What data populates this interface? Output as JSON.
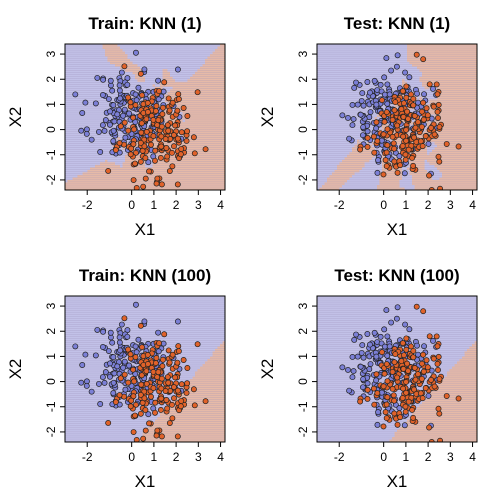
{
  "colors": {
    "class_blue": "#7b7fd6",
    "class_orange": "#e0622a",
    "region_blue": "#c9c9ef",
    "region_orange": "#f2c1a6",
    "grid_blue": "#6f73d4",
    "grid_orange": "#e07a45"
  },
  "chart_data": [
    {
      "type": "scatter",
      "title": "Train: KNN (1)",
      "xlabel": "X1",
      "ylabel": "X2",
      "xlim": [
        -3.0,
        4.2
      ],
      "ylim": [
        -2.4,
        3.4
      ],
      "xticks": [
        -2,
        0,
        1,
        2,
        3,
        4
      ],
      "xtick_labels": [
        "-2",
        "0",
        "1",
        "2",
        "3",
        "4"
      ],
      "yticks": [
        -2,
        -1,
        0,
        1,
        2,
        3
      ],
      "ytick_labels": [
        "-2",
        "-1",
        "0",
        "1",
        "2",
        "3"
      ],
      "decision_boundary": "jagged (k = 1)",
      "background_grid": true
    },
    {
      "type": "scatter",
      "title": "Test: KNN (1)",
      "xlabel": "X1",
      "ylabel": "X2",
      "xlim": [
        -3.0,
        4.2
      ],
      "ylim": [
        -2.4,
        3.4
      ],
      "xticks": [
        -2,
        0,
        1,
        2,
        3,
        4
      ],
      "xtick_labels": [
        "-2",
        "0",
        "1",
        "2",
        "3",
        "4"
      ],
      "yticks": [
        -2,
        -1,
        0,
        1,
        2,
        3
      ],
      "ytick_labels": [
        "-2",
        "-1",
        "0",
        "1",
        "2",
        "3"
      ],
      "decision_boundary": "jagged (k = 1)",
      "background_grid": true
    },
    {
      "type": "scatter",
      "title": "Train: KNN (100)",
      "xlabel": "X1",
      "ylabel": "X2",
      "xlim": [
        -3.0,
        4.2
      ],
      "ylim": [
        -2.4,
        3.4
      ],
      "xticks": [
        -2,
        0,
        1,
        2,
        3,
        4
      ],
      "xtick_labels": [
        "-2",
        "0",
        "1",
        "2",
        "3",
        "4"
      ],
      "yticks": [
        -2,
        -1,
        0,
        1,
        2,
        3
      ],
      "ytick_labels": [
        "-2",
        "-1",
        "0",
        "1",
        "2",
        "3"
      ],
      "decision_boundary": "smooth (k = 100)",
      "background_grid": true
    },
    {
      "type": "scatter",
      "title": "Test: KNN (100)",
      "xlabel": "X1",
      "ylabel": "X2",
      "xlim": [
        -3.0,
        4.2
      ],
      "ylim": [
        -2.4,
        3.4
      ],
      "xticks": [
        -2,
        0,
        1,
        2,
        3,
        4
      ],
      "xtick_labels": [
        "-2",
        "0",
        "1",
        "2",
        "3",
        "4"
      ],
      "yticks": [
        -2,
        -1,
        0,
        1,
        2,
        3
      ],
      "ytick_labels": [
        "-2",
        "-1",
        "0",
        "1",
        "2",
        "3"
      ],
      "decision_boundary": "smooth (k = 100)",
      "background_grid": true
    }
  ]
}
